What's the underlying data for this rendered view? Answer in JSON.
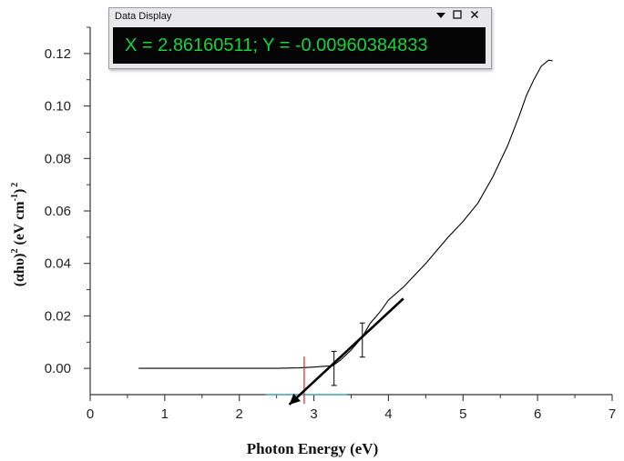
{
  "data_display": {
    "title": "Data Display",
    "readout": "X = 2.86160511; Y = -0.00960384833",
    "controls": {
      "menu_icon": "triangle-down-icon",
      "maximize_icon": "square-icon",
      "close_icon": "close-icon"
    }
  },
  "chart_data": {
    "type": "line",
    "xlabel": "Photon Energy (eV)",
    "ylabel_main": "(αhυ)",
    "ylabel_exp1": "2",
    "ylabel_unit": "(eV cm",
    "ylabel_unit_exp": "-1",
    "ylabel_close": ")",
    "ylabel_exp2": "2",
    "xlim": [
      0,
      7
    ],
    "ylim": [
      -0.01,
      0.13
    ],
    "x_ticks": [
      0,
      1,
      2,
      3,
      4,
      5,
      6,
      7
    ],
    "x_tick_labels": [
      "0",
      "1",
      "2",
      "3",
      "4",
      "5",
      "6",
      "7"
    ],
    "y_ticks": [
      0,
      0.02,
      0.04,
      0.06,
      0.08,
      0.1,
      0.12
    ],
    "y_tick_labels": [
      "0.00",
      "0.02",
      "0.04",
      "0.06",
      "0.08",
      "0.10",
      "0.12"
    ],
    "grid": false,
    "series": [
      {
        "color": "#000000",
        "x": [
          0.65,
          1.0,
          1.5,
          2.0,
          2.5,
          2.8,
          3.0,
          3.15,
          3.25,
          3.35,
          3.5,
          3.65,
          3.75,
          3.9,
          4.0,
          4.2,
          4.5,
          4.8,
          5.0,
          5.2,
          5.4,
          5.6,
          5.75,
          5.85,
          5.95,
          6.05,
          6.15,
          6.2
        ],
        "y": [
          0.0,
          0.0,
          0.0,
          0.0,
          0.0,
          0.0002,
          0.0005,
          0.0008,
          0.001,
          0.003,
          0.007,
          0.012,
          0.017,
          0.022,
          0.026,
          0.031,
          0.04,
          0.05,
          0.056,
          0.063,
          0.073,
          0.085,
          0.096,
          0.104,
          0.11,
          0.1152,
          0.1175,
          0.1172
        ]
      }
    ],
    "fit_line": {
      "color": "#000000",
      "x": [
        4.2,
        2.67
      ],
      "y": [
        0.0266,
        -0.0138
      ]
    },
    "error_bars": [
      {
        "x": 3.27,
        "y": 0.0,
        "half": 0.0065
      },
      {
        "x": 3.65,
        "y": 0.0108,
        "half": 0.0065
      }
    ],
    "cursor_vline": {
      "color": "#e03030",
      "x": 2.87,
      "y_from": -0.0135,
      "y_to": 0.0045
    },
    "cursor_hline": {
      "color": "#4fb8b8",
      "x_from": 2.35,
      "x_to": 3.45,
      "y": -0.01
    }
  }
}
